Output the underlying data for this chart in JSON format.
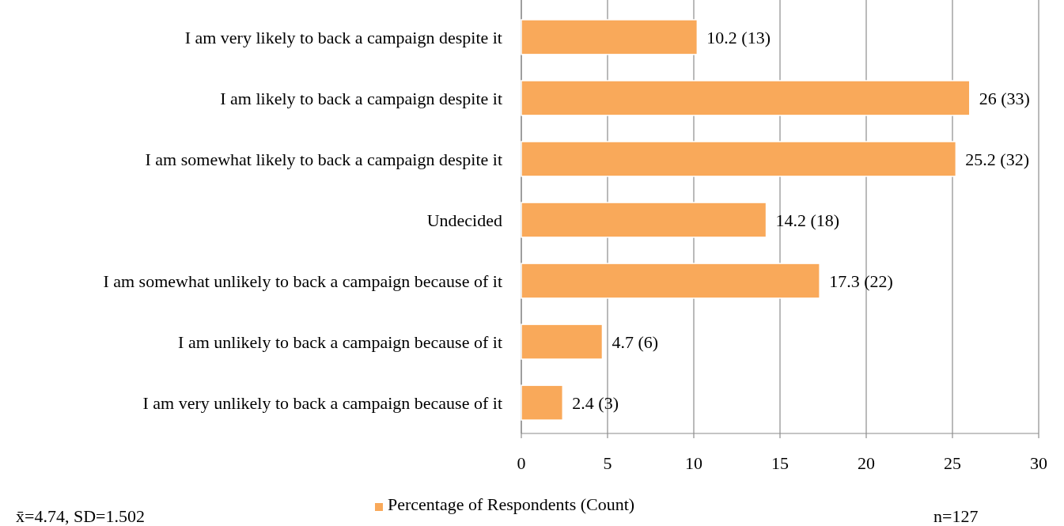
{
  "chart_data": {
    "type": "bar",
    "orientation": "horizontal",
    "categories": [
      "I am very likely to back a campaign despite it",
      "I am likely to back a campaign despite it",
      "I am somewhat likely to back a campaign despite it",
      "Undecided",
      "I am somewhat unlikely to back a campaign because of it",
      "I am unlikely to back a campaign because of it",
      "I am very unlikely to back a campaign because of it"
    ],
    "series": [
      {
        "name": "Percentage of Respondents (Count)",
        "color": "#f9a95a",
        "values": [
          10.2,
          26,
          25.2,
          14.2,
          17.3,
          4.7,
          2.4
        ],
        "value_labels": [
          "10.2 (13)",
          "26 (33)",
          "25.2 (32)",
          "14.2 (18)",
          "17.3 (22)",
          "4.7 (6)",
          "2.4 (3)"
        ]
      }
    ],
    "xlim": [
      0,
      30
    ],
    "xticks": [
      0,
      5,
      10,
      15,
      20,
      25,
      30
    ],
    "grid": "x",
    "legend": "bottom",
    "annotations": [
      "x̄=4.74, SD=1.502",
      "n=127"
    ]
  }
}
